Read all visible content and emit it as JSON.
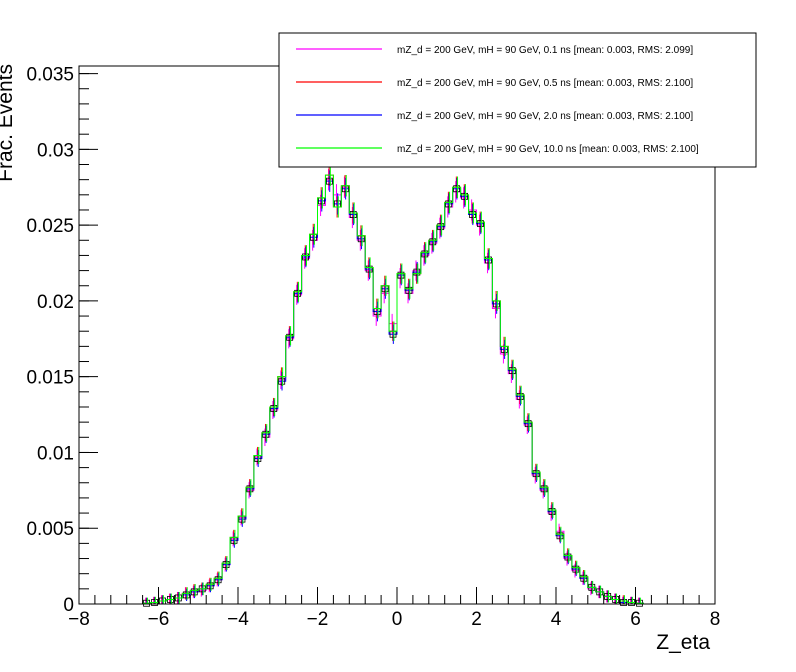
{
  "chart_data": {
    "type": "line",
    "xlabel": "Z_eta",
    "ylabel": "Frac. Events",
    "xlim": [
      -8,
      8
    ],
    "ylim": [
      0,
      0.0355
    ],
    "x_ticks": [
      "−8",
      "−6",
      "−4",
      "−2",
      "0",
      "2",
      "4",
      "6",
      "8"
    ],
    "y_ticks": [
      "0",
      "0.005",
      "0.01",
      "0.015",
      "0.02",
      "0.025",
      "0.03",
      "0.035"
    ],
    "grid": false,
    "legend_position": "top-right",
    "bin_width": 0.2,
    "x": [
      -7.9,
      -7.7,
      -7.5,
      -7.3,
      -7.1,
      -6.9,
      -6.7,
      -6.5,
      -6.3,
      -6.1,
      -5.9,
      -5.7,
      -5.5,
      -5.3,
      -5.1,
      -4.9,
      -4.7,
      -4.5,
      -4.3,
      -4.1,
      -3.9,
      -3.7,
      -3.5,
      -3.3,
      -3.1,
      -2.9,
      -2.7,
      -2.5,
      -2.3,
      -2.1,
      -1.9,
      -1.7,
      -1.5,
      -1.3,
      -1.1,
      -0.9,
      -0.7,
      -0.5,
      -0.3,
      -0.1,
      0.1,
      0.3,
      0.5,
      0.7,
      0.9,
      1.1,
      1.3,
      1.5,
      1.7,
      1.9,
      2.1,
      2.3,
      2.5,
      2.7,
      2.9,
      3.1,
      3.3,
      3.5,
      3.7,
      3.9,
      4.1,
      4.3,
      4.5,
      4.7,
      4.9,
      5.1,
      5.3,
      5.5,
      5.7,
      5.9,
      6.1,
      6.3,
      6.5,
      6.7,
      6.9,
      7.1,
      7.3,
      7.5,
      7.7,
      7.9
    ],
    "series": [
      {
        "name": "mZ_d = 200 GeV, mH = 90 GeV, 0.1 ns [mean: 0.003, RMS: 2.099]",
        "color": "#ff00ff",
        "values": [
          0,
          0,
          0,
          0,
          0,
          0,
          0,
          0,
          5e-05,
          0.0001,
          0.0002,
          0.0003,
          0.0004,
          0.0007,
          0.0008,
          0.0009,
          0.0012,
          0.0016,
          0.0026,
          0.0043,
          0.0057,
          0.0075,
          0.0097,
          0.011,
          0.0128,
          0.0148,
          0.0175,
          0.0204,
          0.0228,
          0.024,
          0.0263,
          0.028,
          0.027,
          0.0275,
          0.0255,
          0.024,
          0.022,
          0.019,
          0.0205,
          0.0185,
          0.0215,
          0.0205,
          0.022,
          0.023,
          0.0238,
          0.0248,
          0.0262,
          0.0272,
          0.0268,
          0.026,
          0.025,
          0.0225,
          0.0195,
          0.0165,
          0.0152,
          0.0135,
          0.0118,
          0.0085,
          0.0075,
          0.006,
          0.0048,
          0.003,
          0.0022,
          0.0017,
          0.001,
          0.0008,
          0.0005,
          0.0003,
          0.0001,
          0.0001,
          5e-05,
          0,
          0,
          0,
          0,
          0,
          0,
          0,
          0,
          0
        ]
      },
      {
        "name": "mZ_d = 200 GeV, mH = 90 GeV, 0.5 ns [mean: 0.003, RMS: 2.100]",
        "color": "#ff0000",
        "values": [
          0,
          0,
          0,
          0,
          0,
          0,
          0,
          0,
          5e-05,
          0.0001,
          0.0002,
          0.0003,
          0.0004,
          0.0007,
          0.0009,
          0.001,
          0.0013,
          0.0017,
          0.0027,
          0.0044,
          0.0058,
          0.0077,
          0.0098,
          0.0113,
          0.013,
          0.015,
          0.0177,
          0.0206,
          0.023,
          0.0244,
          0.0268,
          0.0283,
          0.0262,
          0.0276,
          0.0258,
          0.0243,
          0.0222,
          0.0195,
          0.021,
          0.018,
          0.0218,
          0.0208,
          0.0218,
          0.0232,
          0.024,
          0.025,
          0.0265,
          0.0275,
          0.027,
          0.0258,
          0.0252,
          0.0228,
          0.02,
          0.017,
          0.0155,
          0.0138,
          0.012,
          0.0087,
          0.0077,
          0.0062,
          0.0046,
          0.0032,
          0.0024,
          0.0018,
          0.0011,
          0.0008,
          0.0005,
          0.0003,
          0.0002,
          0.0001,
          5e-05,
          0,
          0,
          0,
          0,
          0,
          0,
          0,
          0,
          0
        ]
      },
      {
        "name": "mZ_d = 200 GeV, mH = 90 GeV, 2.0 ns [mean: 0.003, RMS: 2.100]",
        "color": "#0000ff",
        "values": [
          0,
          0,
          0,
          0,
          0,
          0,
          0,
          0,
          5e-05,
          0.0001,
          0.0002,
          0.0003,
          0.0004,
          0.0006,
          0.0008,
          0.001,
          0.0012,
          0.0016,
          0.0026,
          0.0042,
          0.0056,
          0.0076,
          0.0096,
          0.0112,
          0.0129,
          0.0147,
          0.0176,
          0.0205,
          0.0229,
          0.0242,
          0.0266,
          0.0279,
          0.0264,
          0.0274,
          0.0257,
          0.0241,
          0.0221,
          0.0193,
          0.0208,
          0.0178,
          0.0217,
          0.0207,
          0.0219,
          0.0231,
          0.0239,
          0.0249,
          0.0264,
          0.0274,
          0.0269,
          0.0257,
          0.0251,
          0.0227,
          0.0198,
          0.0168,
          0.0154,
          0.0137,
          0.0119,
          0.0086,
          0.0076,
          0.0061,
          0.0045,
          0.0031,
          0.0023,
          0.0017,
          0.0011,
          0.0008,
          0.0005,
          0.0003,
          0.0001,
          0.0001,
          5e-05,
          0,
          0,
          0,
          0,
          0,
          0,
          0,
          0,
          0
        ]
      },
      {
        "name": "mZ_d = 200 GeV, mH = 90 GeV, 10.0 ns [mean: 0.003, RMS: 2.100]",
        "color": "#00ff00",
        "values": [
          0,
          0,
          0,
          0,
          0,
          0,
          0,
          0,
          5e-05,
          0.0001,
          0.0002,
          0.0003,
          0.0004,
          0.0007,
          0.0009,
          0.001,
          0.0013,
          0.0017,
          0.0027,
          0.0044,
          0.0058,
          0.0077,
          0.0098,
          0.0113,
          0.013,
          0.015,
          0.0177,
          0.0206,
          0.023,
          0.0244,
          0.0268,
          0.0283,
          0.0262,
          0.0276,
          0.0258,
          0.0243,
          0.0222,
          0.0195,
          0.021,
          0.018,
          0.0218,
          0.0208,
          0.0218,
          0.0232,
          0.024,
          0.025,
          0.0265,
          0.0275,
          0.027,
          0.0258,
          0.0252,
          0.0228,
          0.02,
          0.017,
          0.0155,
          0.0138,
          0.012,
          0.0087,
          0.0077,
          0.0062,
          0.0046,
          0.0032,
          0.0024,
          0.0018,
          0.0011,
          0.0008,
          0.0005,
          0.0003,
          0.0002,
          0.0001,
          5e-05,
          0,
          0,
          0,
          0,
          0,
          0,
          0,
          0,
          0
        ]
      }
    ]
  }
}
